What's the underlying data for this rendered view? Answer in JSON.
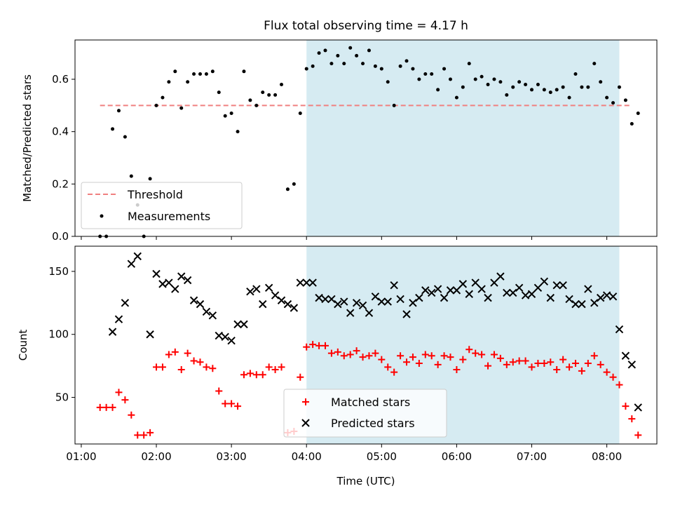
{
  "figure": {
    "title": "Flux total observing time = 4.17 h",
    "xlabel": "Time (UTC)",
    "x_ticks": [
      "01:00",
      "02:00",
      "03:00",
      "04:00",
      "05:00",
      "06:00",
      "07:00",
      "08:00"
    ]
  },
  "colors": {
    "shade": "#add8e6",
    "threshold": "#f08080",
    "measurements": "#000000",
    "matched": "#ff0000",
    "predicted": "#000000"
  },
  "chart_data": [
    {
      "type": "scatter",
      "ylabel": "Matched/Predicted stars",
      "xlim": [
        "00:55",
        "08:40"
      ],
      "ylim": [
        0,
        0.75
      ],
      "y_ticks": [
        "0.0",
        "0.2",
        "0.4",
        "0.6"
      ],
      "shaded_span": [
        "04:00",
        "08:10"
      ],
      "legend": {
        "placement": "lower-left",
        "entries": [
          "Threshold",
          "Measurements"
        ]
      },
      "threshold": {
        "name": "Threshold",
        "value": 0.5,
        "x_range": [
          "01:15",
          "08:20"
        ]
      },
      "series": [
        {
          "name": "Measurements",
          "points": [
            [
              "01:15",
              0.0
            ],
            [
              "01:20",
              0.0
            ],
            [
              "01:25",
              0.41
            ],
            [
              "01:30",
              0.48
            ],
            [
              "01:35",
              0.38
            ],
            [
              "01:40",
              0.23
            ],
            [
              "01:45",
              0.12
            ],
            [
              "01:50",
              0.0
            ],
            [
              "01:55",
              0.22
            ],
            [
              "02:00",
              0.5
            ],
            [
              "02:05",
              0.53
            ],
            [
              "02:10",
              0.59
            ],
            [
              "02:15",
              0.63
            ],
            [
              "02:20",
              0.49
            ],
            [
              "02:25",
              0.59
            ],
            [
              "02:30",
              0.62
            ],
            [
              "02:35",
              0.62
            ],
            [
              "02:40",
              0.62
            ],
            [
              "02:45",
              0.63
            ],
            [
              "02:50",
              0.55
            ],
            [
              "02:55",
              0.46
            ],
            [
              "03:00",
              0.47
            ],
            [
              "03:05",
              0.4
            ],
            [
              "03:10",
              0.63
            ],
            [
              "03:15",
              0.52
            ],
            [
              "03:20",
              0.5
            ],
            [
              "03:25",
              0.55
            ],
            [
              "03:30",
              0.54
            ],
            [
              "03:35",
              0.54
            ],
            [
              "03:40",
              0.58
            ],
            [
              "03:45",
              0.18
            ],
            [
              "03:50",
              0.2
            ],
            [
              "03:55",
              0.47
            ],
            [
              "04:00",
              0.64
            ],
            [
              "04:05",
              0.65
            ],
            [
              "04:10",
              0.7
            ],
            [
              "04:15",
              0.71
            ],
            [
              "04:20",
              0.66
            ],
            [
              "04:25",
              0.69
            ],
            [
              "04:30",
              0.66
            ],
            [
              "04:35",
              0.72
            ],
            [
              "04:40",
              0.69
            ],
            [
              "04:45",
              0.66
            ],
            [
              "04:50",
              0.71
            ],
            [
              "04:55",
              0.65
            ],
            [
              "05:00",
              0.64
            ],
            [
              "05:05",
              0.59
            ],
            [
              "05:10",
              0.5
            ],
            [
              "05:15",
              0.65
            ],
            [
              "05:20",
              0.67
            ],
            [
              "05:25",
              0.64
            ],
            [
              "05:30",
              0.6
            ],
            [
              "05:35",
              0.62
            ],
            [
              "05:40",
              0.62
            ],
            [
              "05:45",
              0.56
            ],
            [
              "05:50",
              0.64
            ],
            [
              "05:55",
              0.6
            ],
            [
              "06:00",
              0.53
            ],
            [
              "06:05",
              0.57
            ],
            [
              "06:10",
              0.66
            ],
            [
              "06:15",
              0.6
            ],
            [
              "06:20",
              0.61
            ],
            [
              "06:25",
              0.58
            ],
            [
              "06:30",
              0.6
            ],
            [
              "06:35",
              0.59
            ],
            [
              "06:40",
              0.54
            ],
            [
              "06:45",
              0.57
            ],
            [
              "06:50",
              0.59
            ],
            [
              "06:55",
              0.58
            ],
            [
              "07:00",
              0.56
            ],
            [
              "07:05",
              0.58
            ],
            [
              "07:10",
              0.56
            ],
            [
              "07:15",
              0.55
            ],
            [
              "07:20",
              0.56
            ],
            [
              "07:25",
              0.57
            ],
            [
              "07:30",
              0.53
            ],
            [
              "07:35",
              0.62
            ],
            [
              "07:40",
              0.57
            ],
            [
              "07:45",
              0.57
            ],
            [
              "07:50",
              0.66
            ],
            [
              "07:55",
              0.59
            ],
            [
              "08:00",
              0.53
            ],
            [
              "08:05",
              0.51
            ],
            [
              "08:10",
              0.57
            ],
            [
              "08:15",
              0.52
            ],
            [
              "08:20",
              0.43
            ],
            [
              "08:25",
              0.47
            ]
          ]
        }
      ]
    },
    {
      "type": "scatter",
      "ylabel": "Count",
      "xlim": [
        "00:55",
        "08:40"
      ],
      "ylim": [
        13,
        170
      ],
      "y_ticks": [
        "50",
        "100",
        "150"
      ],
      "shaded_span": [
        "04:00",
        "08:10"
      ],
      "legend": {
        "placement": "bottom-center",
        "entries": [
          "Matched stars",
          "Predicted stars"
        ]
      },
      "series": [
        {
          "name": "Matched stars",
          "points": [
            [
              "01:15",
              42
            ],
            [
              "01:20",
              42
            ],
            [
              "01:25",
              42
            ],
            [
              "01:30",
              54
            ],
            [
              "01:35",
              48
            ],
            [
              "01:40",
              36
            ],
            [
              "01:45",
              20
            ],
            [
              "01:50",
              20
            ],
            [
              "01:55",
              22
            ],
            [
              "02:00",
              74
            ],
            [
              "02:05",
              74
            ],
            [
              "02:10",
              84
            ],
            [
              "02:15",
              86
            ],
            [
              "02:20",
              72
            ],
            [
              "02:25",
              85
            ],
            [
              "02:30",
              79
            ],
            [
              "02:35",
              78
            ],
            [
              "02:40",
              74
            ],
            [
              "02:45",
              73
            ],
            [
              "02:50",
              55
            ],
            [
              "02:55",
              45
            ],
            [
              "03:00",
              45
            ],
            [
              "03:05",
              43
            ],
            [
              "03:10",
              68
            ],
            [
              "03:15",
              69
            ],
            [
              "03:20",
              68
            ],
            [
              "03:25",
              68
            ],
            [
              "03:30",
              74
            ],
            [
              "03:35",
              72
            ],
            [
              "03:40",
              74
            ],
            [
              "03:45",
              22
            ],
            [
              "03:50",
              23
            ],
            [
              "03:55",
              66
            ],
            [
              "04:00",
              90
            ],
            [
              "04:05",
              92
            ],
            [
              "04:10",
              91
            ],
            [
              "04:15",
              91
            ],
            [
              "04:20",
              85
            ],
            [
              "04:25",
              86
            ],
            [
              "04:30",
              83
            ],
            [
              "04:35",
              84
            ],
            [
              "04:40",
              87
            ],
            [
              "04:45",
              82
            ],
            [
              "04:50",
              83
            ],
            [
              "04:55",
              85
            ],
            [
              "05:00",
              80
            ],
            [
              "05:05",
              74
            ],
            [
              "05:10",
              70
            ],
            [
              "05:15",
              83
            ],
            [
              "05:20",
              78
            ],
            [
              "05:25",
              82
            ],
            [
              "05:30",
              77
            ],
            [
              "05:35",
              84
            ],
            [
              "05:40",
              83
            ],
            [
              "05:45",
              76
            ],
            [
              "05:50",
              83
            ],
            [
              "05:55",
              82
            ],
            [
              "06:00",
              72
            ],
            [
              "06:05",
              80
            ],
            [
              "06:10",
              88
            ],
            [
              "06:15",
              85
            ],
            [
              "06:20",
              84
            ],
            [
              "06:25",
              75
            ],
            [
              "06:30",
              84
            ],
            [
              "06:35",
              81
            ],
            [
              "06:40",
              76
            ],
            [
              "06:45",
              78
            ],
            [
              "06:50",
              79
            ],
            [
              "06:55",
              79
            ],
            [
              "07:00",
              74
            ],
            [
              "07:05",
              77
            ],
            [
              "07:10",
              77
            ],
            [
              "07:15",
              78
            ],
            [
              "07:20",
              72
            ],
            [
              "07:25",
              80
            ],
            [
              "07:30",
              74
            ],
            [
              "07:35",
              77
            ],
            [
              "07:40",
              71
            ],
            [
              "07:45",
              77
            ],
            [
              "07:50",
              83
            ],
            [
              "07:55",
              76
            ],
            [
              "08:00",
              70
            ],
            [
              "08:05",
              66
            ],
            [
              "08:10",
              60
            ],
            [
              "08:15",
              43
            ],
            [
              "08:20",
              33
            ],
            [
              "08:25",
              20
            ]
          ]
        },
        {
          "name": "Predicted stars",
          "points": [
            [
              "01:25",
              102
            ],
            [
              "01:30",
              112
            ],
            [
              "01:35",
              125
            ],
            [
              "01:40",
              156
            ],
            [
              "01:45",
              162
            ],
            [
              "01:55",
              100
            ],
            [
              "02:00",
              148
            ],
            [
              "02:05",
              140
            ],
            [
              "02:10",
              141
            ],
            [
              "02:15",
              136
            ],
            [
              "02:20",
              146
            ],
            [
              "02:25",
              143
            ],
            [
              "02:30",
              127
            ],
            [
              "02:35",
              124
            ],
            [
              "02:40",
              118
            ],
            [
              "02:45",
              115
            ],
            [
              "02:50",
              99
            ],
            [
              "02:55",
              98
            ],
            [
              "03:00",
              95
            ],
            [
              "03:05",
              108
            ],
            [
              "03:10",
              108
            ],
            [
              "03:15",
              134
            ],
            [
              "03:20",
              136
            ],
            [
              "03:25",
              124
            ],
            [
              "03:30",
              137
            ],
            [
              "03:35",
              131
            ],
            [
              "03:40",
              127
            ],
            [
              "03:45",
              124
            ],
            [
              "03:50",
              121
            ],
            [
              "03:55",
              141
            ],
            [
              "04:00",
              141
            ],
            [
              "04:05",
              141
            ],
            [
              "04:10",
              129
            ],
            [
              "04:15",
              128
            ],
            [
              "04:20",
              128
            ],
            [
              "04:25",
              124
            ],
            [
              "04:30",
              126
            ],
            [
              "04:35",
              117
            ],
            [
              "04:40",
              125
            ],
            [
              "04:45",
              123
            ],
            [
              "04:50",
              117
            ],
            [
              "04:55",
              130
            ],
            [
              "05:00",
              126
            ],
            [
              "05:05",
              126
            ],
            [
              "05:10",
              139
            ],
            [
              "05:15",
              128
            ],
            [
              "05:20",
              116
            ],
            [
              "05:25",
              125
            ],
            [
              "05:30",
              129
            ],
            [
              "05:35",
              135
            ],
            [
              "05:40",
              133
            ],
            [
              "05:45",
              136
            ],
            [
              "05:50",
              129
            ],
            [
              "05:55",
              135
            ],
            [
              "06:00",
              135
            ],
            [
              "06:05",
              140
            ],
            [
              "06:10",
              132
            ],
            [
              "06:15",
              141
            ],
            [
              "06:20",
              136
            ],
            [
              "06:25",
              129
            ],
            [
              "06:30",
              141
            ],
            [
              "06:35",
              146
            ],
            [
              "06:40",
              133
            ],
            [
              "06:45",
              133
            ],
            [
              "06:50",
              137
            ],
            [
              "06:55",
              131
            ],
            [
              "07:00",
              132
            ],
            [
              "07:05",
              137
            ],
            [
              "07:10",
              142
            ],
            [
              "07:15",
              129
            ],
            [
              "07:20",
              139
            ],
            [
              "07:25",
              139
            ],
            [
              "07:30",
              128
            ],
            [
              "07:35",
              124
            ],
            [
              "07:40",
              124
            ],
            [
              "07:45",
              136
            ],
            [
              "07:50",
              125
            ],
            [
              "07:55",
              129
            ],
            [
              "08:00",
              131
            ],
            [
              "08:05",
              130
            ],
            [
              "08:10",
              104
            ],
            [
              "08:15",
              83
            ],
            [
              "08:20",
              76
            ],
            [
              "08:25",
              42
            ]
          ]
        }
      ]
    }
  ]
}
